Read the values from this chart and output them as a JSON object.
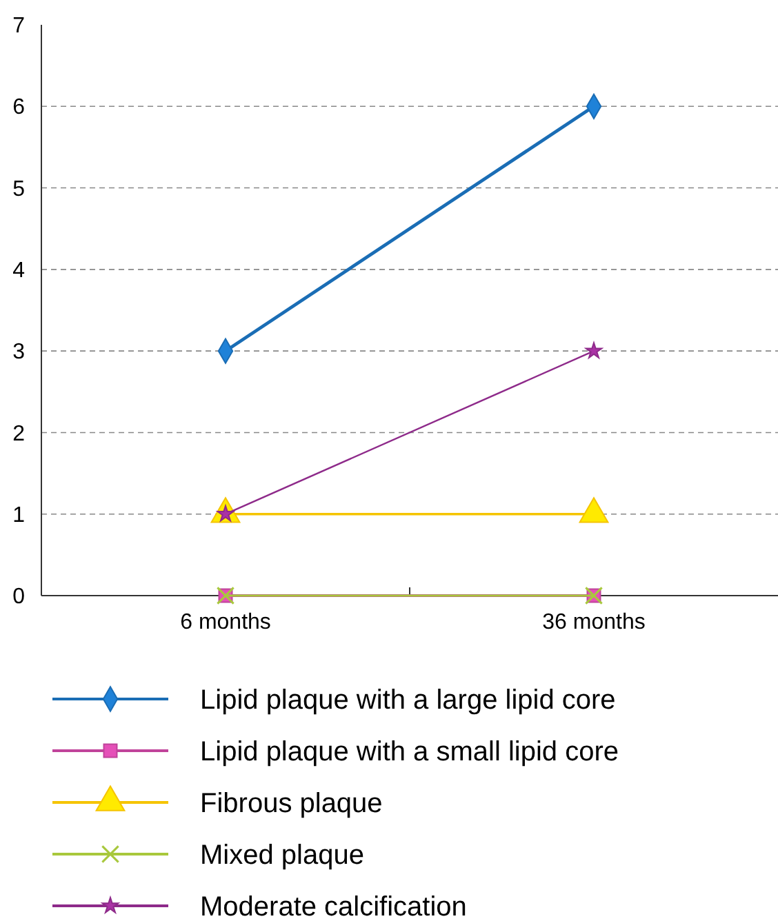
{
  "chart_data": {
    "type": "line",
    "categories": [
      "6 months",
      "36 months"
    ],
    "ylim": [
      0,
      7
    ],
    "yticks": [
      0,
      1,
      2,
      3,
      4,
      5,
      6,
      7
    ],
    "grid": "y",
    "legend": "bottom",
    "series": [
      {
        "name": "Lipid plaque with a large lipid core",
        "color": "#1a6db5",
        "marker": "diamond",
        "values": [
          3,
          6
        ]
      },
      {
        "name": "Lipid plaque with a small lipid core",
        "color": "#c0439a",
        "marker": "square",
        "values": [
          0,
          0
        ]
      },
      {
        "name": "Fibrous plaque",
        "color": "#f5c400",
        "marker": "triangle",
        "values": [
          1,
          1
        ]
      },
      {
        "name": "Mixed plaque",
        "color": "#a8c83c",
        "marker": "cross",
        "values": [
          0,
          0
        ]
      },
      {
        "name": "Moderate calcification",
        "color": "#8e2a8a",
        "marker": "star",
        "values": [
          1,
          3
        ]
      }
    ]
  }
}
